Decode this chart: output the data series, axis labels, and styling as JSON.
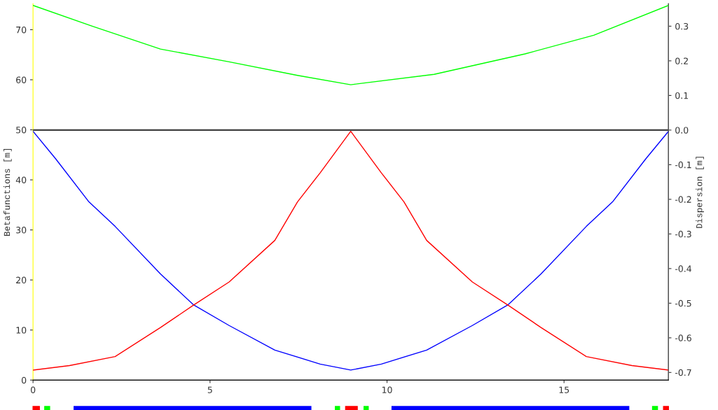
{
  "chart_data": {
    "type": "line",
    "ylabel": "Betafunctions [m]",
    "y2label": "Dispersion [m]",
    "xlim": [
      0,
      17.95
    ],
    "xticks": [
      0,
      5,
      10,
      15
    ],
    "ylim": [
      0,
      75.2
    ],
    "yticks": [
      0,
      10,
      20,
      30,
      40,
      50,
      60,
      70
    ],
    "y2lim": [
      -0.722,
      0.365
    ],
    "y2ticks": [
      {
        "value": -0.7,
        "label": "-0.7"
      },
      {
        "value": -0.6,
        "label": "-0.6"
      },
      {
        "value": -0.5,
        "label": "-0.5"
      },
      {
        "value": -0.4,
        "label": "-0.4"
      },
      {
        "value": -0.3,
        "label": "-0.3"
      },
      {
        "value": -0.2,
        "label": "-0.2"
      },
      {
        "value": -0.1,
        "label": "-0.1"
      },
      {
        "value": 0,
        "label": "0.0"
      },
      {
        "value": 0.1,
        "label": "0.1"
      },
      {
        "value": 0.2,
        "label": "0.2"
      },
      {
        "value": 0.3,
        "label": "0.3"
      }
    ],
    "grid": false,
    "legend": false,
    "marker": "none",
    "line_style": "solid",
    "series": [
      {
        "color": "#0000ff",
        "x": [
          0,
          0.64,
          1.58,
          2.32,
          3.6,
          4.54,
          5.54,
          6.83,
          8.11,
          8.975,
          9.84,
          11.12,
          12.41,
          13.41,
          14.35,
          15.63,
          16.37,
          17.31,
          17.95
        ],
        "values": [
          49.7,
          44.2,
          35.6,
          30.7,
          21.2,
          15.0,
          10.9,
          6.0,
          3.2,
          2.0,
          3.2,
          6.0,
          10.9,
          15.0,
          21.2,
          30.7,
          35.6,
          44.2,
          49.7
        ]
      },
      {
        "color": "#ff0000",
        "x": [
          0,
          1.03,
          2.32,
          3.6,
          4.54,
          5.54,
          6.83,
          7.47,
          8.11,
          8.975,
          9.84,
          10.48,
          11.12,
          12.41,
          13.41,
          14.35,
          15.63,
          16.92,
          17.95
        ],
        "values": [
          2.0,
          2.9,
          4.7,
          10.5,
          15.0,
          19.6,
          27.9,
          35.6,
          41.4,
          49.7,
          41.4,
          35.6,
          27.9,
          19.6,
          15.0,
          10.5,
          4.7,
          2.9,
          2.0
        ]
      },
      {
        "color": "#00ff00",
        "axis": "y2",
        "x": [
          0,
          1.67,
          3.6,
          5.54,
          7.47,
          8.975,
          11.33,
          13.9,
          15.84,
          17.95
        ],
        "values": [
          0.36,
          0.3,
          0.234,
          0.197,
          0.158,
          0.131,
          0.161,
          0.22,
          0.274,
          0.36
        ]
      }
    ],
    "ref_lines": [
      {
        "axis": "y2",
        "value": 0,
        "color": "#404040",
        "line_style": "solid"
      }
    ]
  }
}
